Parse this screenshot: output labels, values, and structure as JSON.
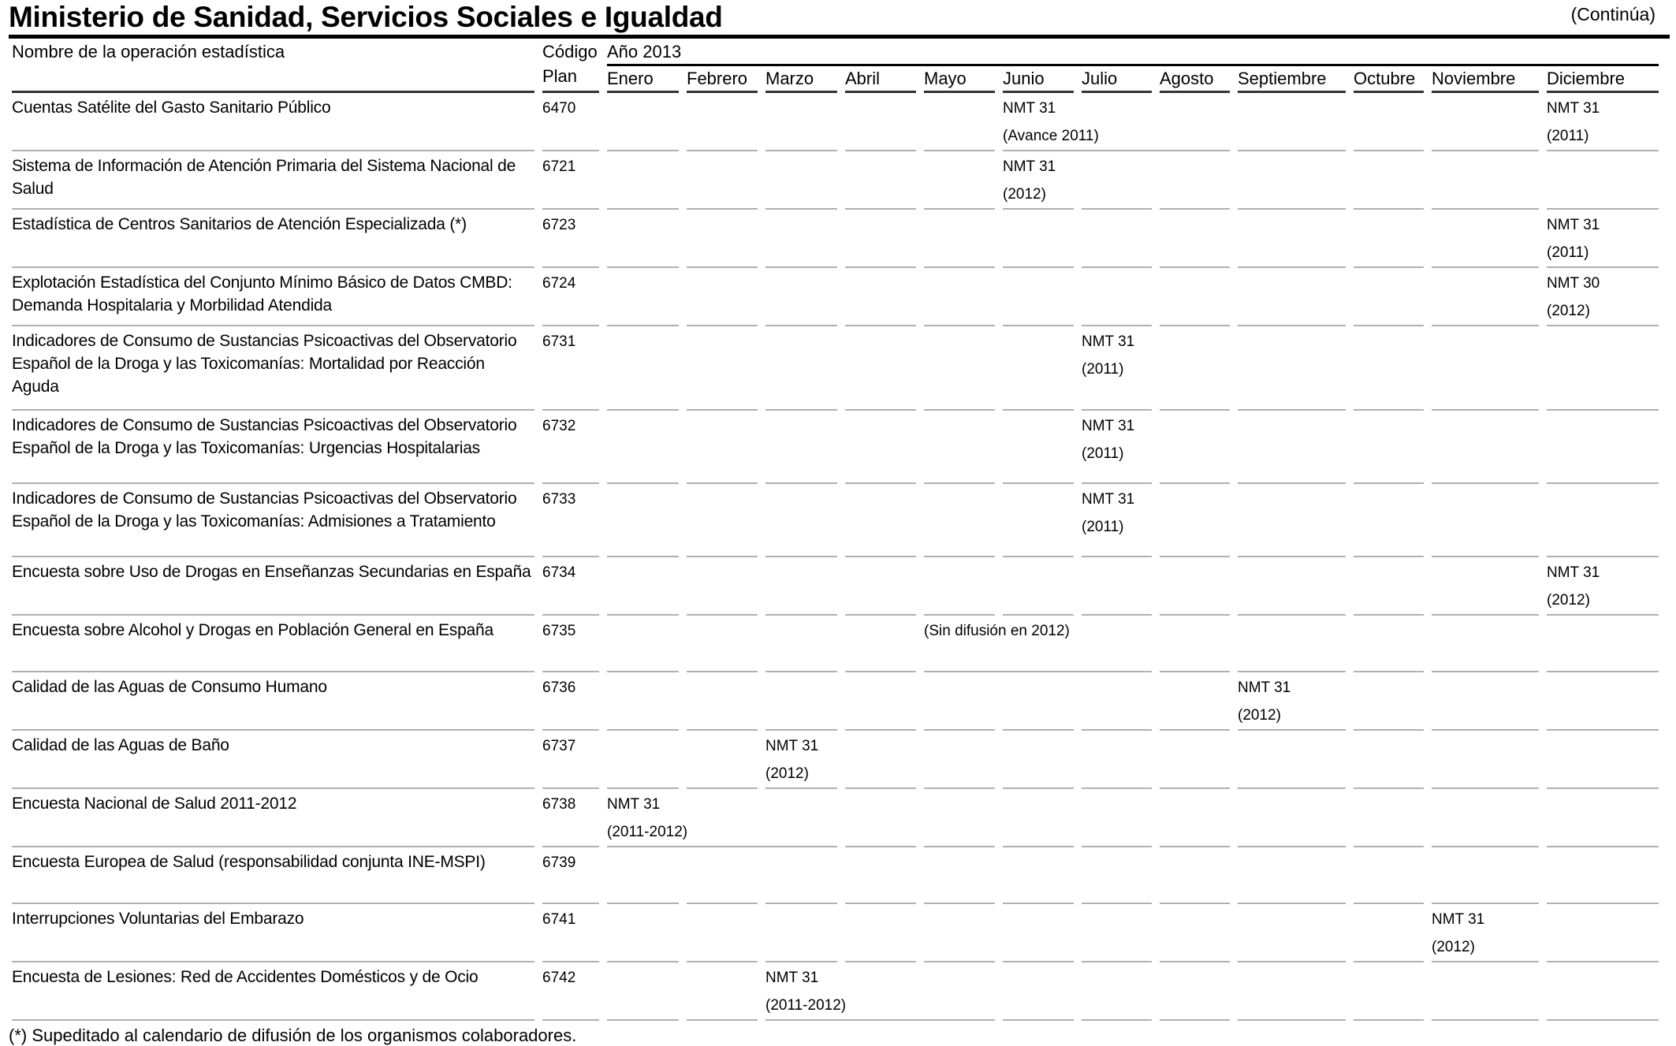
{
  "title": "Ministerio de Sanidad, Servicios Sociales e Igualdad",
  "continues": "(Continúa)",
  "header": {
    "name": "Nombre de la operación estadística",
    "code_l1": "Código",
    "code_l2": "Plan",
    "year": "Año 2013",
    "months": [
      "Enero",
      "Febrero",
      "Marzo",
      "Abril",
      "Mayo",
      "Junio",
      "Julio",
      "Agosto",
      "Septiembre",
      "Octubre",
      "Noviembre",
      "Diciembre"
    ]
  },
  "rows": [
    {
      "name": "Cuentas Satélite del Gasto Sanitario Público",
      "code": "6470",
      "cells": {
        "5": [
          "NMT 31",
          "(Avance 2011)"
        ],
        "11": [
          "NMT 31",
          "(2011)"
        ]
      }
    },
    {
      "name": "Sistema de Información de Atención Primaria del Sistema Nacional de Salud",
      "code": "6721",
      "cells": {
        "5": [
          "NMT 31",
          "(2012)"
        ]
      }
    },
    {
      "name": "Estadística de Centros Sanitarios de Atención Especializada  (*)",
      "code": "6723",
      "cells": {
        "11": [
          "NMT 31",
          "(2011)"
        ]
      }
    },
    {
      "name": "Explotación Estadística del Conjunto Mínimo Básico de Datos CMBD: Demanda Hospitalaria y Morbilidad Atendida",
      "code": "6724",
      "cells": {
        "11": [
          "NMT 30",
          "(2012)"
        ]
      }
    },
    {
      "name": "Indicadores de Consumo de Sustancias Psicoactivas del Observatorio Español de la Droga y las Toxicomanías: Mortalidad por Reacción Aguda",
      "code": "6731",
      "cells": {
        "6": [
          "NMT 31",
          "(2011)"
        ]
      }
    },
    {
      "name": "Indicadores de Consumo de Sustancias Psicoactivas del Observatorio Español de la Droga y las Toxicomanías: Urgencias Hospitalarias",
      "code": "6732",
      "cells": {
        "6": [
          "NMT 31",
          "(2011)"
        ]
      }
    },
    {
      "name": "Indicadores de Consumo de Sustancias Psicoactivas del Observatorio Español de la Droga y las Toxicomanías: Admisiones a Tratamiento",
      "code": "6733",
      "cells": {
        "6": [
          "NMT 31",
          "(2011)"
        ]
      }
    },
    {
      "name": "Encuesta sobre Uso de Drogas en Enseñanzas Secundarias en España",
      "code": "6734",
      "cells": {
        "11": [
          "NMT 31",
          "(2012)"
        ]
      }
    },
    {
      "name": "Encuesta sobre Alcohol y Drogas en Población General en España",
      "code": "6735",
      "cells": {
        "4": [
          "(Sin difusión en 2012)"
        ]
      }
    },
    {
      "name": "Calidad de las Aguas de Consumo Humano",
      "code": "6736",
      "cells": {
        "8": [
          "NMT 31",
          "(2012)"
        ]
      }
    },
    {
      "name": "Calidad de las Aguas de Baño",
      "code": "6737",
      "cells": {
        "2": [
          "NMT 31",
          "(2012)"
        ]
      }
    },
    {
      "name": "Encuesta Nacional de Salud 2011-2012",
      "code": "6738",
      "cells": {
        "0": [
          "NMT 31",
          "(2011-2012)"
        ]
      }
    },
    {
      "name": "Encuesta Europea de Salud (responsabilidad conjunta INE-MSPI)",
      "code": "6739",
      "cells": {}
    },
    {
      "name": "Interrupciones Voluntarias del Embarazo",
      "code": "6741",
      "cells": {
        "10": [
          "NMT 31",
          "(2012)"
        ]
      }
    },
    {
      "name": "Encuesta de Lesiones: Red de Accidentes Domésticos y de Ocio",
      "code": "6742",
      "cells": {
        "2": [
          "NMT 31",
          "(2011-2012)"
        ]
      }
    }
  ],
  "footnote": "(*) Supeditado al calendario de difusión de los organismos colaboradores."
}
